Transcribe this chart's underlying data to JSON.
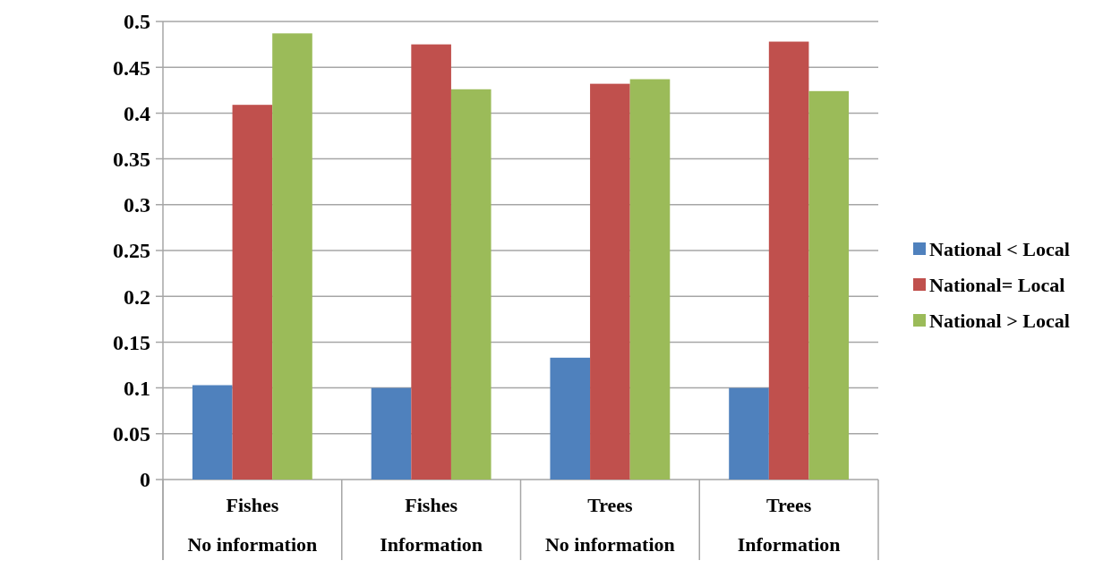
{
  "chart_data": {
    "type": "bar",
    "categories": [
      "Fishes\nNo information",
      "Fishes\nInformation",
      "Trees\nNo information",
      "Trees\nInformation"
    ],
    "series": [
      {
        "name": "National < Local",
        "color": "#4f81bd",
        "values": [
          0.103,
          0.1,
          0.133,
          0.1
        ]
      },
      {
        "name": "National= Local",
        "color": "#c0504d",
        "values": [
          0.409,
          0.475,
          0.432,
          0.478
        ]
      },
      {
        "name": "National > Local",
        "color": "#9bbb59",
        "values": [
          0.487,
          0.426,
          0.437,
          0.424
        ]
      }
    ],
    "ylim": [
      0,
      0.5
    ],
    "yticks": [
      0,
      0.05,
      0.1,
      0.15,
      0.2,
      0.25,
      0.3,
      0.35,
      0.4,
      0.45,
      0.5
    ],
    "grid": "y",
    "legend": "right"
  }
}
